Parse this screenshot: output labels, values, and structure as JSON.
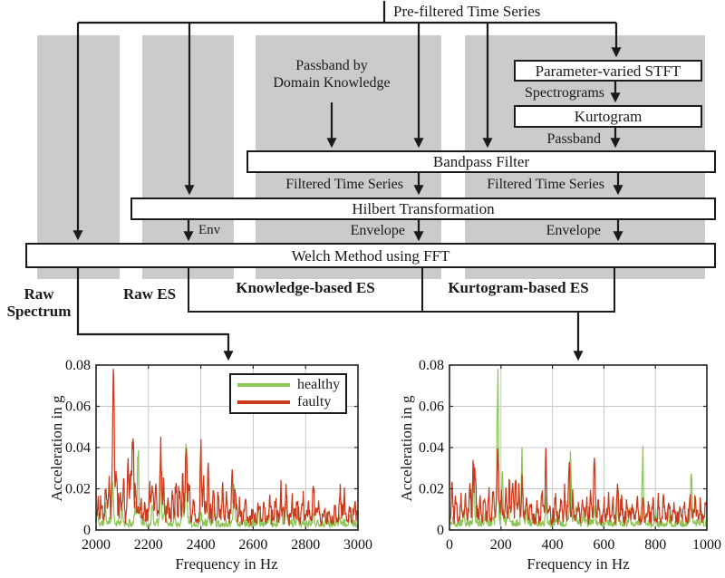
{
  "flowchart": {
    "source_label": "Pre-filtered Time Series",
    "nodes": {
      "stft": "Parameter-varied STFT",
      "kurtogram": "Kurtogram",
      "bandpass": "Bandpass Filter",
      "hilbert": "Hilbert Transformation",
      "welch": "Welch Method using FFT"
    },
    "edge_labels": {
      "passband_domain": [
        "Passband by",
        "Domain Knowledge"
      ],
      "spectrograms": "Spectrograms",
      "passband": "Passband",
      "filtered_left": "Filtered Time Series",
      "filtered_right": "Filtered Time Series",
      "env_short": "Env",
      "envelope_mid": "Envelope",
      "envelope_right": "Envelope"
    },
    "outputs": {
      "raw_spectrum": [
        "Raw",
        "Spectrum"
      ],
      "raw_es": "Raw ES",
      "knowledge_es": "Knowledge-based ES",
      "kurtogram_es": "Kurtogram-based ES"
    }
  },
  "colors": {
    "healthy": "#8cc656",
    "faulty": "#c93a1d",
    "band": "#cbcbcb",
    "ink": "#1a1a1a"
  },
  "chart_data": [
    {
      "type": "line",
      "title": "",
      "xlabel": "Frequency in Hz",
      "ylabel": "Acceleration in g",
      "xlim": [
        2000,
        3000
      ],
      "ylim": [
        0,
        0.08
      ],
      "xticks": [
        2000,
        2200,
        2400,
        2600,
        2800,
        3000
      ],
      "yticks": [
        0,
        0.02,
        0.04,
        0.06,
        0.08
      ],
      "grid": true,
      "legend": {
        "position": "top-right",
        "entries": [
          "healthy",
          "faulty"
        ]
      },
      "series": [
        {
          "name": "healthy",
          "noise_floor": 0.0022,
          "peaks": [
            [
              2005,
              0.006
            ],
            [
              2035,
              0.008
            ],
            [
              2063,
              0.019
            ],
            [
              2100,
              0.006
            ],
            [
              2150,
              0.008
            ],
            [
              2161,
              0.035
            ],
            [
              2215,
              0.009
            ],
            [
              2247,
              0.023
            ],
            [
              2262,
              0.008
            ],
            [
              2300,
              0.006
            ],
            [
              2330,
              0.008
            ],
            [
              2344,
              0.035
            ],
            [
              2400,
              0.006
            ],
            [
              2430,
              0.005
            ],
            [
              2452,
              0.009
            ],
            [
              2527,
              0.017
            ],
            [
              2560,
              0.005
            ],
            [
              2620,
              0.007
            ],
            [
              2660,
              0.005
            ],
            [
              2706,
              0.012
            ],
            [
              2726,
              0.01
            ],
            [
              2770,
              0.004
            ],
            [
              2830,
              0.005
            ],
            [
              2880,
              0.004
            ],
            [
              2930,
              0.005
            ],
            [
              2970,
              0.004
            ]
          ]
        },
        {
          "name": "faulty",
          "noise_floor": 0.0045,
          "peaks": [
            [
              2008,
              0.009
            ],
            [
              2020,
              0.008
            ],
            [
              2038,
              0.016
            ],
            [
              2050,
              0.015
            ],
            [
              2066,
              0.07
            ],
            [
              2078,
              0.022
            ],
            [
              2092,
              0.012
            ],
            [
              2105,
              0.016
            ],
            [
              2122,
              0.02
            ],
            [
              2131,
              0.018
            ],
            [
              2141,
              0.043
            ],
            [
              2152,
              0.012
            ],
            [
              2170,
              0.008
            ],
            [
              2185,
              0.008
            ],
            [
              2205,
              0.019
            ],
            [
              2215,
              0.016
            ],
            [
              2228,
              0.015
            ],
            [
              2247,
              0.036
            ],
            [
              2258,
              0.014
            ],
            [
              2275,
              0.008
            ],
            [
              2292,
              0.013
            ],
            [
              2305,
              0.014
            ],
            [
              2318,
              0.011
            ],
            [
              2332,
              0.018
            ],
            [
              2344,
              0.039
            ],
            [
              2356,
              0.014
            ],
            [
              2372,
              0.009
            ],
            [
              2400,
              0.027
            ],
            [
              2411,
              0.012
            ],
            [
              2428,
              0.022
            ],
            [
              2448,
              0.01
            ],
            [
              2466,
              0.009
            ],
            [
              2483,
              0.013
            ],
            [
              2497,
              0.011
            ],
            [
              2520,
              0.024
            ],
            [
              2532,
              0.012
            ],
            [
              2548,
              0.007
            ],
            [
              2570,
              0.008
            ],
            [
              2600,
              0.006
            ],
            [
              2622,
              0.008
            ],
            [
              2641,
              0.008
            ],
            [
              2663,
              0.009
            ],
            [
              2685,
              0.01
            ],
            [
              2706,
              0.013
            ],
            [
              2726,
              0.012
            ],
            [
              2748,
              0.008
            ],
            [
              2768,
              0.009
            ],
            [
              2790,
              0.008
            ],
            [
              2812,
              0.007
            ],
            [
              2830,
              0.017
            ],
            [
              2848,
              0.008
            ],
            [
              2872,
              0.006
            ],
            [
              2890,
              0.005
            ],
            [
              2912,
              0.007
            ],
            [
              2932,
              0.011
            ],
            [
              2948,
              0.009
            ],
            [
              2968,
              0.006
            ],
            [
              2988,
              0.007
            ]
          ]
        }
      ]
    },
    {
      "type": "line",
      "title": "",
      "xlabel": "Frequency in Hz",
      "ylabel": "Acceleration in g",
      "xlim": [
        0,
        1000
      ],
      "ylim": [
        0,
        0.08
      ],
      "xticks": [
        0,
        200,
        400,
        600,
        800,
        1000
      ],
      "yticks": [
        0,
        0.02,
        0.04,
        0.06,
        0.08
      ],
      "grid": true,
      "series": [
        {
          "name": "healthy",
          "noise_floor": 0.0022,
          "peaks": [
            [
              15,
              0.005
            ],
            [
              55,
              0.007
            ],
            [
              95,
              0.022
            ],
            [
              140,
              0.006
            ],
            [
              187,
              0.066
            ],
            [
              205,
              0.022
            ],
            [
              230,
              0.007
            ],
            [
              282,
              0.03
            ],
            [
              300,
              0.008
            ],
            [
              330,
              0.005
            ],
            [
              375,
              0.013
            ],
            [
              420,
              0.006
            ],
            [
              470,
              0.029
            ],
            [
              490,
              0.007
            ],
            [
              520,
              0.005
            ],
            [
              563,
              0.008
            ],
            [
              610,
              0.005
            ],
            [
              655,
              0.013
            ],
            [
              700,
              0.006
            ],
            [
              750,
              0.032
            ],
            [
              800,
              0.005
            ],
            [
              850,
              0.006
            ],
            [
              890,
              0.005
            ],
            [
              940,
              0.023
            ],
            [
              980,
              0.006
            ]
          ]
        },
        {
          "name": "faulty",
          "noise_floor": 0.004,
          "peaks": [
            [
              10,
              0.016
            ],
            [
              25,
              0.01
            ],
            [
              45,
              0.012
            ],
            [
              62,
              0.013
            ],
            [
              80,
              0.014
            ],
            [
              92,
              0.025
            ],
            [
              100,
              0.023
            ],
            [
              118,
              0.01
            ],
            [
              135,
              0.013
            ],
            [
              152,
              0.012
            ],
            [
              170,
              0.013
            ],
            [
              187,
              0.041
            ],
            [
              200,
              0.012
            ],
            [
              218,
              0.014
            ],
            [
              232,
              0.016
            ],
            [
              245,
              0.017
            ],
            [
              258,
              0.015
            ],
            [
              270,
              0.012
            ],
            [
              282,
              0.019
            ],
            [
              298,
              0.01
            ],
            [
              315,
              0.008
            ],
            [
              340,
              0.009
            ],
            [
              360,
              0.011
            ],
            [
              375,
              0.028
            ],
            [
              390,
              0.009
            ],
            [
              412,
              0.01
            ],
            [
              432,
              0.009
            ],
            [
              448,
              0.011
            ],
            [
              465,
              0.026
            ],
            [
              480,
              0.009
            ],
            [
              500,
              0.008
            ],
            [
              518,
              0.01
            ],
            [
              532,
              0.008
            ],
            [
              548,
              0.009
            ],
            [
              563,
              0.028
            ],
            [
              580,
              0.008
            ],
            [
              600,
              0.009
            ],
            [
              618,
              0.01
            ],
            [
              635,
              0.009
            ],
            [
              652,
              0.016
            ],
            [
              668,
              0.008
            ],
            [
              690,
              0.007
            ],
            [
              710,
              0.007
            ],
            [
              730,
              0.008
            ],
            [
              752,
              0.008
            ],
            [
              772,
              0.007
            ],
            [
              790,
              0.008
            ],
            [
              812,
              0.008
            ],
            [
              832,
              0.009
            ],
            [
              852,
              0.008
            ],
            [
              872,
              0.007
            ],
            [
              895,
              0.006
            ],
            [
              912,
              0.007
            ],
            [
              935,
              0.01
            ],
            [
              955,
              0.008
            ],
            [
              975,
              0.009
            ],
            [
              995,
              0.008
            ]
          ]
        }
      ]
    }
  ]
}
